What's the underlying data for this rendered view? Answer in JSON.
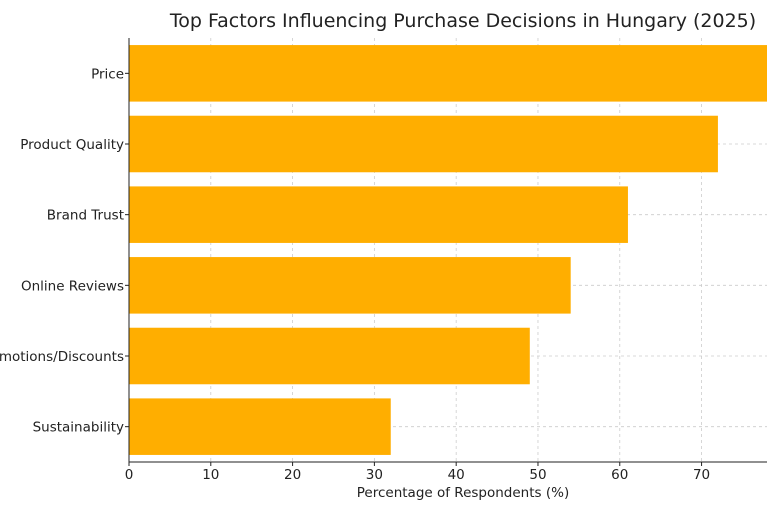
{
  "chart_data": {
    "type": "bar",
    "orientation": "horizontal",
    "title": "Top Factors Influencing Purchase Decisions in Hungary (2025)",
    "xlabel": "Percentage of Respondents (%)",
    "ylabel": "",
    "categories": [
      "Price",
      "Product Quality",
      "Brand Trust",
      "Online Reviews",
      "Promotions/Discounts",
      "Sustainability"
    ],
    "values": [
      78,
      72,
      61,
      54,
      49,
      32
    ],
    "xlim": [
      0,
      78
    ],
    "xticks": [
      0,
      10,
      20,
      30,
      40,
      50,
      60,
      70
    ],
    "grid": true,
    "bar_color": "#FFAE00",
    "grid_color": "#cccccc"
  }
}
